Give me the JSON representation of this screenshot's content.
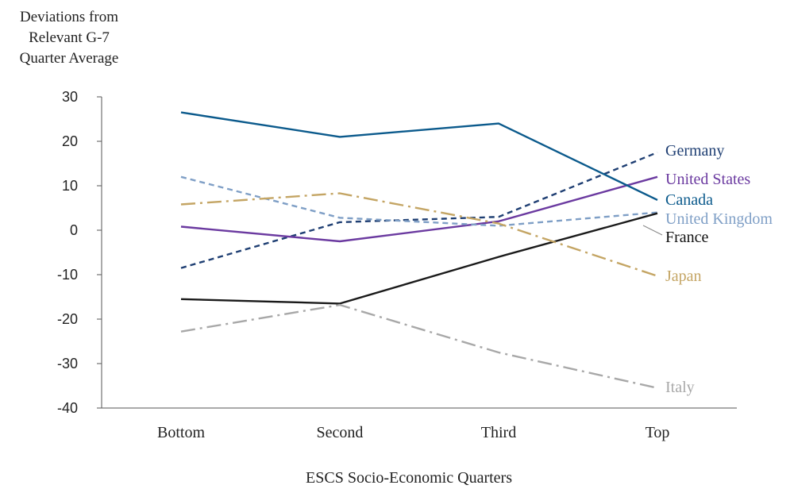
{
  "chart_data": {
    "type": "line",
    "ylabel": [
      "Deviations from",
      "Relevant G-7",
      "Quarter Average"
    ],
    "xlabel": "ESCS Socio-Economic Quarters",
    "categories": [
      "Bottom",
      "Second",
      "Third",
      "Top"
    ],
    "ylim": [
      -40,
      30
    ],
    "yticks": [
      30,
      20,
      10,
      0,
      -10,
      -20,
      -30,
      -40
    ],
    "grid": false,
    "legend": "inline-right",
    "series": [
      {
        "name": "Germany",
        "values": [
          -8.5,
          1.8,
          3.0,
          17.5
        ],
        "color": "#1f3f73",
        "dash": "dashed"
      },
      {
        "name": "United States",
        "values": [
          0.8,
          -2.5,
          2.0,
          12.0
        ],
        "color": "#6b3aa0",
        "dash": "solid"
      },
      {
        "name": "Canada",
        "values": [
          26.5,
          21.0,
          24.0,
          6.8
        ],
        "color": "#0b5a8c",
        "dash": "solid"
      },
      {
        "name": "United Kingdom",
        "values": [
          12.0,
          2.8,
          1.0,
          4.0
        ],
        "color": "#7f9fc6",
        "dash": "dashed"
      },
      {
        "name": "France",
        "values": [
          -15.5,
          -16.5,
          -6.0,
          3.8
        ],
        "color": "#1a1a1a",
        "dash": "solid"
      },
      {
        "name": "Japan",
        "values": [
          5.8,
          8.3,
          1.5,
          -10.3
        ],
        "color": "#c4a564",
        "dash": "dashdot"
      },
      {
        "name": "Italy",
        "values": [
          -22.8,
          -16.8,
          -27.5,
          -35.5
        ],
        "color": "#a8a8a8",
        "dash": "dashdot"
      }
    ]
  }
}
